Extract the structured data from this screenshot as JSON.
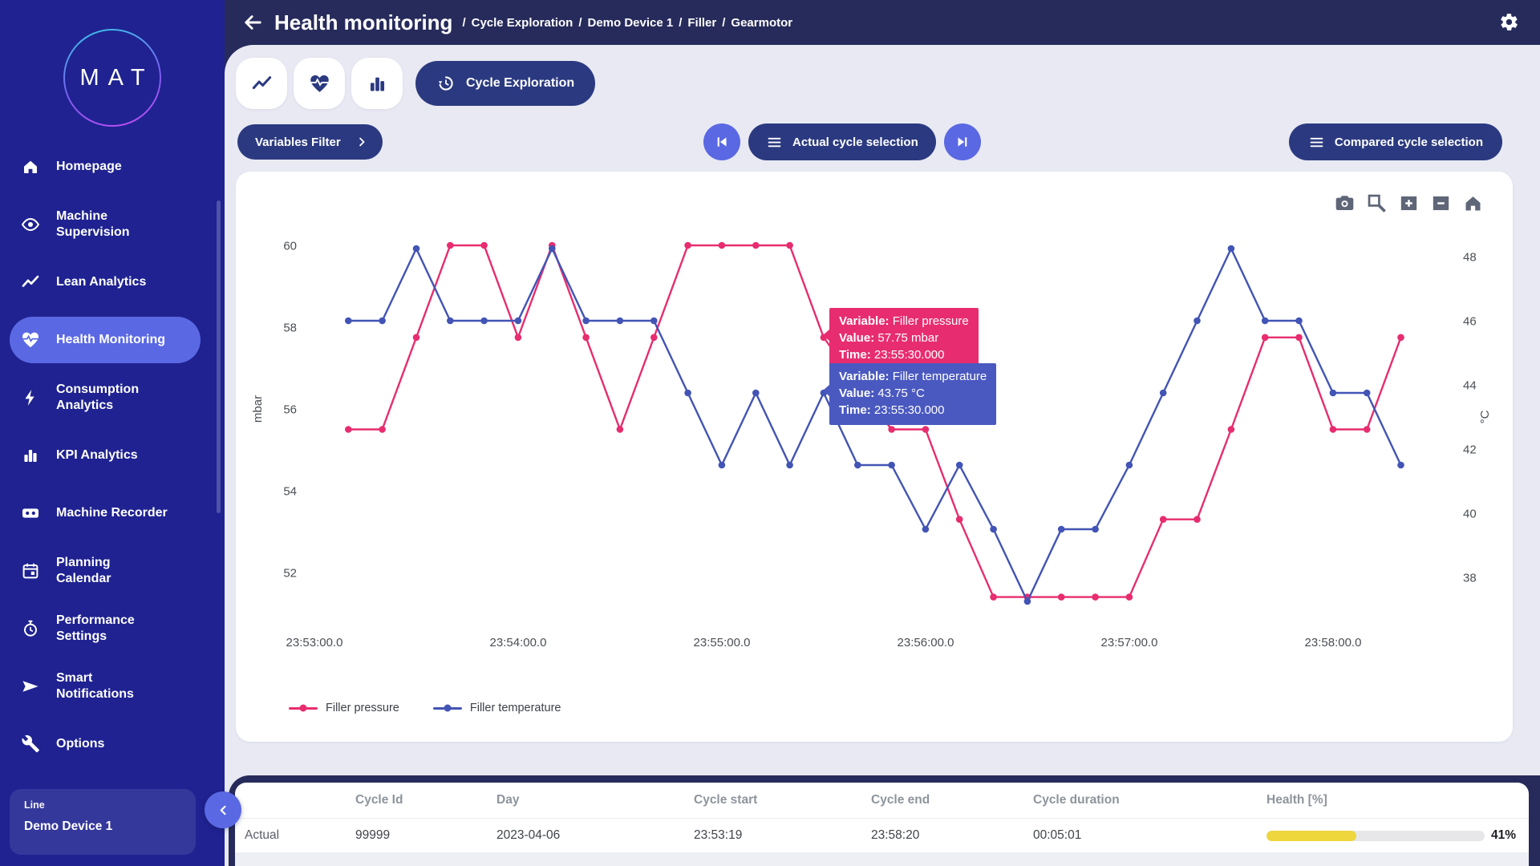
{
  "colors": {
    "sidebar_bg": "#1f2290",
    "header_bg": "#272b5b",
    "button_navy": "#2b3a80",
    "periwinkle": "#5a68e3",
    "page_bg": "#e8e9f3",
    "accent_pink": "#e72d6f",
    "accent_blue": "#4254b5",
    "health_yellow": "#eed63d"
  },
  "sidebar": {
    "logo_text": "MAT",
    "items": [
      {
        "label": "Homepage",
        "icon": "home",
        "active": false
      },
      {
        "label": "Machine\nSupervision",
        "icon": "eye",
        "active": false
      },
      {
        "label": "Lean Analytics",
        "icon": "trend",
        "active": false
      },
      {
        "label": "Health Monitoring",
        "icon": "heartpulse",
        "active": true
      },
      {
        "label": "Consumption\nAnalytics",
        "icon": "bolt",
        "active": false
      },
      {
        "label": "KPI Analytics",
        "icon": "bars",
        "active": false
      },
      {
        "label": "Machine Recorder",
        "icon": "cassette",
        "active": false
      },
      {
        "label": "Planning\nCalendar",
        "icon": "calendar",
        "active": false
      },
      {
        "label": "Performance\nSettings",
        "icon": "stopwatch",
        "active": false
      },
      {
        "label": "Smart\nNotifications",
        "icon": "send",
        "active": false
      },
      {
        "label": "Options",
        "icon": "wrench",
        "active": false
      }
    ],
    "device_card": {
      "label": "Line",
      "value": "Demo Device 1"
    }
  },
  "header": {
    "title": "Health monitoring",
    "breadcrumb": [
      "Cycle Exploration",
      "Demo Device 1",
      "Filler",
      "Gearmotor"
    ]
  },
  "tabs": {
    "cycle_exploration_label": "Cycle Exploration"
  },
  "controls": {
    "variables_filter": "Variables Filter",
    "actual_cycle": "Actual cycle selection",
    "compared_cycle": "Compared cycle selection"
  },
  "tooltip_labels": {
    "variable": "Variable:",
    "value": "Value:",
    "time": "Time:"
  },
  "tooltips": [
    {
      "variable": "Filler pressure",
      "value": "57.75 mbar",
      "time": "23:55:30.000",
      "color": "#e72d6f"
    },
    {
      "variable": "Filler temperature",
      "value": "43.75 °C",
      "time": "23:55:30.000",
      "color": "#4a59c0"
    }
  ],
  "chart_toolbar": [
    "camera",
    "zoom-box",
    "zoom-in",
    "zoom-out",
    "reset-home"
  ],
  "chart_data": {
    "type": "line",
    "title": "",
    "grid": false,
    "legend_position": "bottom-left",
    "x_ticks": [
      "23:53:00.0",
      "23:54:00.0",
      "23:55:00.0",
      "23:56:00.0",
      "23:57:00.0",
      "23:58:00.0"
    ],
    "ylabel_left": "mbar",
    "ylabel_right": "°C",
    "left_ticks": [
      60,
      58,
      56,
      54,
      52
    ],
    "right_ticks": [
      48,
      46,
      44,
      42,
      40,
      38
    ],
    "left_range": [
      51,
      60.5
    ],
    "right_range": [
      36.5,
      48.6
    ],
    "times": [
      "23:53:10",
      "23:53:20",
      "23:53:30",
      "23:53:40",
      "23:53:50",
      "23:54:00",
      "23:54:10",
      "23:54:20",
      "23:54:30",
      "23:54:40",
      "23:54:50",
      "23:55:00",
      "23:55:10",
      "23:55:20",
      "23:55:30",
      "23:55:40",
      "23:55:50",
      "23:56:00",
      "23:56:10",
      "23:56:20",
      "23:56:30",
      "23:56:40",
      "23:56:50",
      "23:57:00",
      "23:57:10",
      "23:57:20",
      "23:57:30",
      "23:57:40",
      "23:57:50",
      "23:58:00",
      "23:58:10",
      "23:58:20"
    ],
    "series": [
      {
        "name": "Filler pressure",
        "axis": "left",
        "unit": "mbar",
        "color": "#e72d6f",
        "values": [
          55.5,
          55.5,
          57.75,
          60,
          60,
          57.75,
          60,
          57.75,
          55.5,
          57.75,
          60,
          60,
          60,
          60,
          57.75,
          56.6,
          55.5,
          55.5,
          53.3,
          51.4,
          51.4,
          51.4,
          51.4,
          51.4,
          53.3,
          53.3,
          55.5,
          57.75,
          57.75,
          55.5,
          55.5,
          57.75
        ]
      },
      {
        "name": "Filler temperature",
        "axis": "right",
        "unit": "°C",
        "color": "#4254b5",
        "values": [
          46,
          46,
          48.25,
          46,
          46,
          46,
          48.25,
          46,
          46,
          46,
          43.75,
          41.5,
          43.75,
          41.5,
          43.75,
          41.5,
          41.5,
          39.5,
          41.5,
          39.5,
          37.25,
          39.5,
          39.5,
          41.5,
          43.75,
          46,
          48.25,
          46,
          46,
          43.75,
          43.75,
          41.5
        ]
      }
    ]
  },
  "table": {
    "headers": [
      "",
      "Cycle Id",
      "Day",
      "Cycle start",
      "Cycle end",
      "Cycle duration",
      "Health [%]"
    ],
    "row": {
      "label": "Actual",
      "cycle_id": "99999",
      "day": "2023-04-06",
      "cycle_start": "23:53:19",
      "cycle_end": "23:58:20",
      "cycle_duration": "00:05:01",
      "health_pct": 41,
      "health_label": "41%",
      "health_color": "#eed63d"
    }
  }
}
